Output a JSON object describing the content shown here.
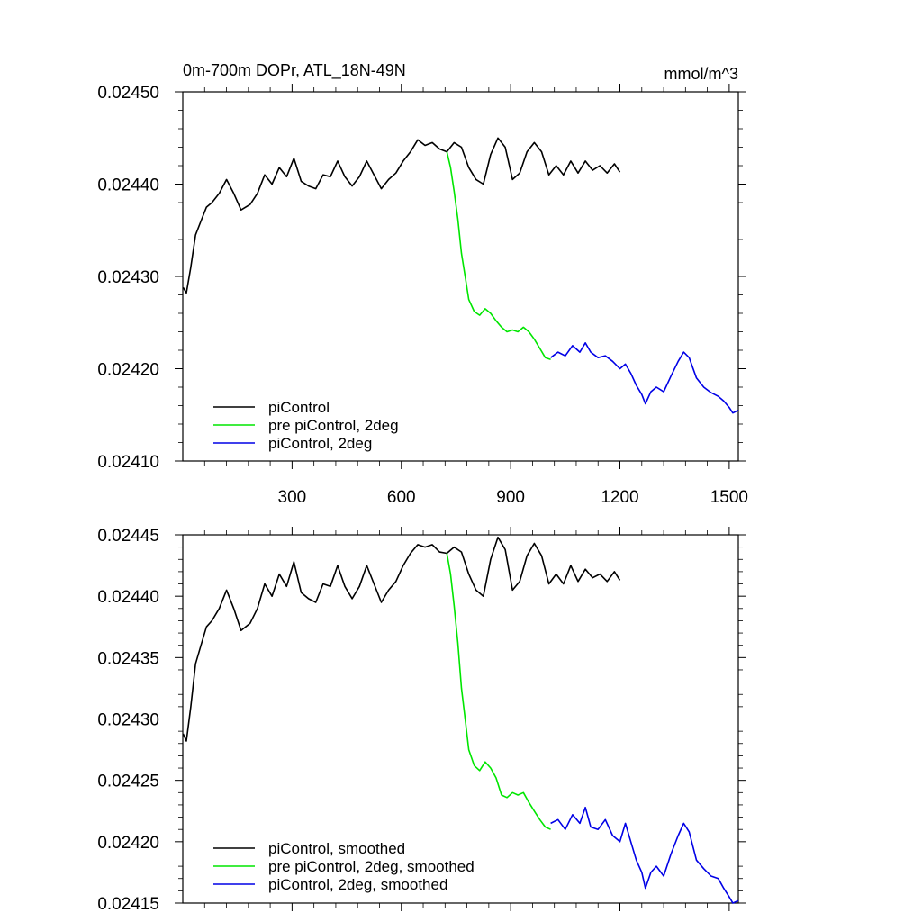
{
  "chart_data": [
    {
      "type": "line",
      "title": "0m-700m DOPr, ATL_18N-49N",
      "units": "mmol/m^3",
      "xlim": [
        0,
        1525
      ],
      "ylim": [
        0.0241,
        0.0245
      ],
      "xticks": [
        300,
        600,
        900,
        1200,
        1500
      ],
      "xtick_labels": [
        "300",
        "600",
        "900",
        "1200",
        "1500"
      ],
      "yticks": [
        0.0241,
        0.0242,
        0.0243,
        0.0244,
        0.0245
      ],
      "ytick_labels": [
        "0.02410",
        "0.02420",
        "0.02430",
        "0.02440",
        "0.02450"
      ],
      "grid": false,
      "legend_position": "bottom-left",
      "series": [
        {
          "name": "piControl",
          "color": "#000000",
          "x": [
            1,
            10,
            22,
            35,
            50,
            65,
            80,
            100,
            120,
            140,
            160,
            185,
            205,
            225,
            245,
            265,
            285,
            305,
            325,
            345,
            365,
            385,
            405,
            425,
            445,
            465,
            485,
            505,
            525,
            545,
            565,
            585,
            605,
            625,
            645,
            665,
            685,
            705,
            725,
            745,
            765,
            785,
            805,
            825,
            845,
            865,
            885,
            905,
            925,
            945,
            965,
            985,
            1005,
            1025,
            1045,
            1065,
            1085,
            1105,
            1125,
            1145,
            1165,
            1185,
            1200
          ],
          "y": [
            0.024288,
            0.024282,
            0.02431,
            0.024345,
            0.02436,
            0.024375,
            0.02438,
            0.02439,
            0.024405,
            0.02439,
            0.024372,
            0.024378,
            0.02439,
            0.02441,
            0.0244,
            0.024418,
            0.024408,
            0.024428,
            0.024403,
            0.024398,
            0.024395,
            0.02441,
            0.024408,
            0.024425,
            0.024408,
            0.024398,
            0.024408,
            0.024425,
            0.02441,
            0.024395,
            0.024405,
            0.024412,
            0.024425,
            0.024435,
            0.024448,
            0.024442,
            0.024445,
            0.024438,
            0.024435,
            0.024445,
            0.02444,
            0.024418,
            0.024405,
            0.0244,
            0.024432,
            0.02445,
            0.02444,
            0.024405,
            0.024412,
            0.024435,
            0.024445,
            0.024435,
            0.02441,
            0.02442,
            0.02441,
            0.024425,
            0.024412,
            0.024425,
            0.024415,
            0.02442,
            0.024412,
            0.024422,
            0.024413
          ]
        },
        {
          "name": "pre piControl, 2deg",
          "color": "#00e600",
          "x": [
            725,
            735,
            745,
            755,
            765,
            775,
            785,
            800,
            815,
            830,
            845,
            860,
            875,
            890,
            905,
            920,
            935,
            950,
            965,
            980,
            995,
            1010
          ],
          "y": [
            0.024435,
            0.024418,
            0.024392,
            0.024362,
            0.024325,
            0.0243,
            0.024275,
            0.024262,
            0.024258,
            0.024265,
            0.02426,
            0.024252,
            0.024245,
            0.02424,
            0.024242,
            0.02424,
            0.024245,
            0.02424,
            0.024232,
            0.024222,
            0.024212,
            0.02421
          ]
        },
        {
          "name": "piControl, 2deg",
          "color": "#0000e6",
          "x": [
            1010,
            1030,
            1050,
            1070,
            1090,
            1105,
            1120,
            1140,
            1160,
            1180,
            1200,
            1215,
            1230,
            1245,
            1260,
            1270,
            1285,
            1300,
            1320,
            1340,
            1360,
            1375,
            1390,
            1410,
            1430,
            1450,
            1470,
            1485,
            1500,
            1510,
            1525
          ],
          "y": [
            0.024212,
            0.024218,
            0.024214,
            0.024225,
            0.024218,
            0.024228,
            0.024218,
            0.024212,
            0.024214,
            0.024208,
            0.0242,
            0.024205,
            0.024195,
            0.024182,
            0.024172,
            0.024162,
            0.024175,
            0.02418,
            0.024175,
            0.024192,
            0.024208,
            0.024218,
            0.024212,
            0.02419,
            0.02418,
            0.024174,
            0.02417,
            0.024165,
            0.024158,
            0.024152,
            0.024155
          ]
        }
      ]
    },
    {
      "type": "line",
      "xlim": [
        0,
        1525
      ],
      "ylim": [
        0.02415,
        0.02445
      ],
      "xticks": [
        300,
        600,
        900,
        1200,
        1500
      ],
      "yticks": [
        0.02415,
        0.0242,
        0.02425,
        0.0243,
        0.02435,
        0.0244,
        0.02445
      ],
      "ytick_labels": [
        "0.02415",
        "0.02420",
        "0.02425",
        "0.02430",
        "0.02435",
        "0.02440",
        "0.02445"
      ],
      "grid": false,
      "legend_position": "bottom-left",
      "series": [
        {
          "name": "piControl, smoothed",
          "color": "#000000",
          "x": [
            1,
            10,
            22,
            35,
            50,
            65,
            80,
            100,
            120,
            140,
            160,
            185,
            205,
            225,
            245,
            265,
            285,
            305,
            325,
            345,
            365,
            385,
            405,
            425,
            445,
            465,
            485,
            505,
            525,
            545,
            565,
            585,
            605,
            625,
            645,
            665,
            685,
            705,
            725,
            745,
            765,
            785,
            805,
            825,
            845,
            865,
            885,
            905,
            925,
            945,
            965,
            985,
            1005,
            1025,
            1045,
            1065,
            1085,
            1105,
            1125,
            1145,
            1165,
            1185,
            1200
          ],
          "y": [
            0.024288,
            0.024282,
            0.02431,
            0.024345,
            0.02436,
            0.024375,
            0.02438,
            0.02439,
            0.024405,
            0.02439,
            0.024372,
            0.024378,
            0.02439,
            0.02441,
            0.0244,
            0.024418,
            0.024408,
            0.024428,
            0.024403,
            0.024398,
            0.024395,
            0.02441,
            0.024408,
            0.024425,
            0.024408,
            0.024398,
            0.024408,
            0.024425,
            0.02441,
            0.024395,
            0.024405,
            0.024412,
            0.024425,
            0.024435,
            0.024442,
            0.02444,
            0.024442,
            0.024436,
            0.024435,
            0.02444,
            0.024436,
            0.024418,
            0.024405,
            0.0244,
            0.02443,
            0.024448,
            0.024438,
            0.024405,
            0.024412,
            0.024433,
            0.024443,
            0.024433,
            0.02441,
            0.024418,
            0.02441,
            0.024425,
            0.024412,
            0.024422,
            0.024415,
            0.024418,
            0.024412,
            0.02442,
            0.024413
          ]
        },
        {
          "name": "pre piControl, 2deg, smoothed",
          "color": "#00e600",
          "x": [
            725,
            735,
            745,
            755,
            765,
            775,
            785,
            800,
            815,
            830,
            845,
            860,
            875,
            890,
            905,
            920,
            935,
            950,
            965,
            980,
            995,
            1010
          ],
          "y": [
            0.024435,
            0.024418,
            0.024392,
            0.024362,
            0.024325,
            0.0243,
            0.024275,
            0.024262,
            0.024258,
            0.024265,
            0.02426,
            0.024252,
            0.024238,
            0.024236,
            0.02424,
            0.024238,
            0.02424,
            0.024232,
            0.024225,
            0.024218,
            0.024212,
            0.02421
          ]
        },
        {
          "name": "piControl, 2deg, smoothed",
          "color": "#0000e6",
          "x": [
            1010,
            1030,
            1050,
            1070,
            1090,
            1105,
            1120,
            1140,
            1160,
            1180,
            1200,
            1215,
            1230,
            1245,
            1260,
            1270,
            1285,
            1300,
            1320,
            1340,
            1360,
            1375,
            1390,
            1410,
            1430,
            1450,
            1470,
            1485,
            1500,
            1510,
            1525
          ],
          "y": [
            0.024215,
            0.024218,
            0.02421,
            0.024222,
            0.024215,
            0.024228,
            0.024212,
            0.02421,
            0.024218,
            0.024205,
            0.0242,
            0.024215,
            0.0242,
            0.024185,
            0.024175,
            0.024162,
            0.024175,
            0.02418,
            0.024172,
            0.02419,
            0.024205,
            0.024215,
            0.024208,
            0.024185,
            0.024178,
            0.024172,
            0.02417,
            0.024162,
            0.024155,
            0.02415,
            0.024152
          ]
        }
      ]
    }
  ]
}
